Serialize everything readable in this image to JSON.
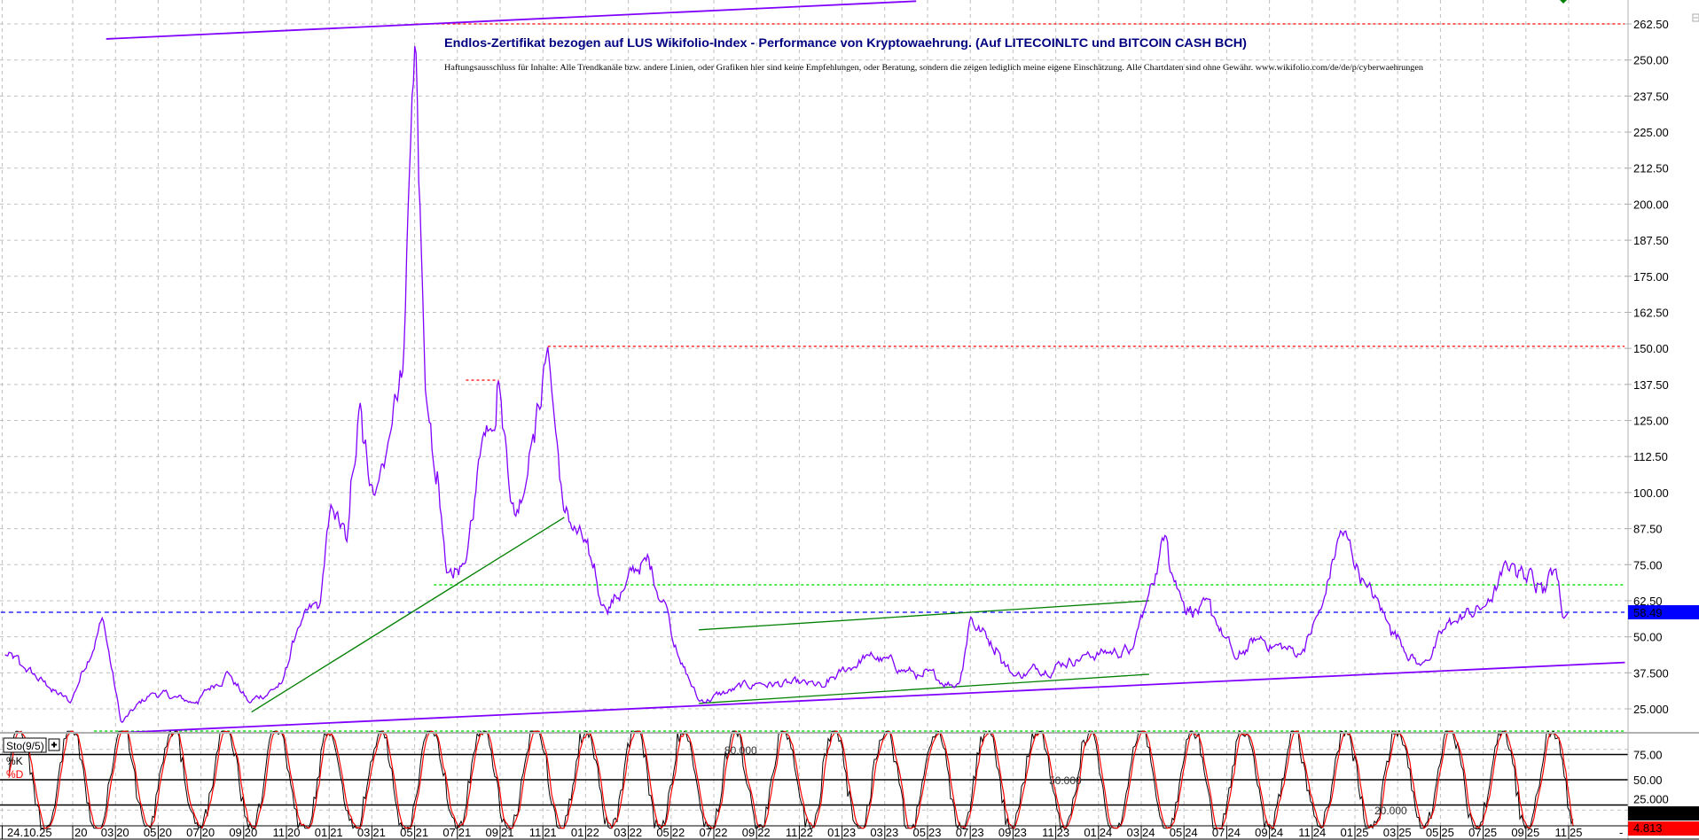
{
  "chart_data": [
    {
      "type": "line",
      "title": "Endlos-Zertifikat bezogen auf LUS Wikifolio-Index - Performance von Kryptowaehrung. (Auf LITECOINLTC und BITCOIN CASH BCH)",
      "subtitle": "Haftungsausschluss für Inhalte: Alle Trendkanäle bzw. andere Linien, oder Grafiken hier sind keine Empfehlungen, oder Beratung, sondern die zeigen lediglich meine eigene Einschätzung. Alle Chartdaten sind ohne Gewähr.  www.wikifolio.com/de/de/p/cyberwaehrungen",
      "xlabel": "",
      "ylabel": "",
      "ylim": [
        17,
        268
      ],
      "grid": true,
      "y_ticks": [
        "262.50",
        "250.00",
        "237.50",
        "225.00",
        "212.50",
        "200.00",
        "187.50",
        "175.00",
        "162.50",
        "150.00",
        "137.50",
        "125.00",
        "112.50",
        "100.00",
        "87.50",
        "75.00",
        "62.50",
        "50.00",
        "37.500",
        "25.000"
      ],
      "y_tick_values": [
        262.5,
        250,
        237.5,
        225,
        212.5,
        200,
        187.5,
        175,
        162.5,
        150,
        137.5,
        125,
        112.5,
        100,
        87.5,
        75,
        62.5,
        50,
        37.5,
        25
      ],
      "last_price": {
        "label": "58.49",
        "value": 58.49,
        "color": "#0000ff"
      },
      "series": [
        {
          "color": "#8000ff",
          "points": [
            [
              "2019-09-26",
              43.8
            ],
            [
              "2019-10-19",
              40
            ],
            [
              "2019-11-27",
              32.5
            ],
            [
              "2019-12-28",
              27
            ],
            [
              "2020-02-13",
              57
            ],
            [
              "2020-03-09",
              20
            ],
            [
              "2020-04-22",
              30.6
            ],
            [
              "2020-06-23",
              27
            ],
            [
              "2020-08-08",
              38
            ],
            [
              "2020-09-09",
              27
            ],
            [
              "2020-10-25",
              34
            ],
            [
              "2020-11-17",
              53
            ],
            [
              "2020-12-18",
              60.6
            ],
            [
              "2021-01-03",
              96
            ],
            [
              "2021-01-26",
              83
            ],
            [
              "2021-02-14",
              132
            ],
            [
              "2021-03-04",
              98
            ],
            [
              "2021-03-27",
              120.7
            ],
            [
              "2021-04-15",
              143
            ],
            [
              "2021-05-02",
              261
            ],
            [
              "2021-05-16",
              135.7
            ],
            [
              "2021-05-28",
              109
            ],
            [
              "2021-06-16",
              72
            ],
            [
              "2021-07-13",
              75.6
            ],
            [
              "2021-08-06",
              118.8
            ],
            [
              "2021-08-29",
              139
            ],
            [
              "2021-09-22",
              90.7
            ],
            [
              "2021-10-15",
              117
            ],
            [
              "2021-11-08",
              150.7
            ],
            [
              "2021-11-30",
              94
            ],
            [
              "2022-01-08",
              77.5
            ],
            [
              "2022-01-23",
              60.6
            ],
            [
              "2022-02-24",
              66
            ],
            [
              "2022-03-24",
              77.5
            ],
            [
              "2022-04-25",
              60.6
            ],
            [
              "2022-05-10",
              43.8
            ],
            [
              "2022-06-10",
              27.6
            ],
            [
              "2022-09-04",
              34
            ],
            [
              "2022-12-06",
              32.5
            ],
            [
              "2023-02-06",
              43.8
            ],
            [
              "2023-04-22",
              36.3
            ],
            [
              "2023-06-16",
              33.6
            ],
            [
              "2023-07-01",
              57
            ],
            [
              "2023-08-09",
              45.6
            ],
            [
              "2023-09-02",
              36.3
            ],
            [
              "2023-12-11",
              43.8
            ],
            [
              "2024-02-19",
              45.6
            ],
            [
              "2024-03-09",
              62.5
            ],
            [
              "2024-04-05",
              85.8
            ],
            [
              "2024-04-28",
              62.5
            ],
            [
              "2024-06-13",
              57
            ],
            [
              "2024-07-14",
              41.9
            ],
            [
              "2024-08-14",
              49.4
            ],
            [
              "2024-10-15",
              43.8
            ],
            [
              "2024-11-15",
              60.6
            ],
            [
              "2024-12-11",
              87
            ],
            [
              "2025-01-16",
              68
            ],
            [
              "2025-02-17",
              55
            ],
            [
              "2025-04-03",
              40
            ],
            [
              "2025-05-18",
              55
            ],
            [
              "2025-07-04",
              60.6
            ],
            [
              "2025-08-12",
              75.6
            ],
            [
              "2025-09-20",
              68
            ],
            [
              "2025-10-13",
              73.8
            ],
            [
              "2025-10-23",
              56
            ],
            [
              "2025-11-01",
              58.49
            ]
          ]
        }
      ],
      "trendlines": [
        {
          "color": "#8000ff",
          "style": "solid",
          "from": [
            "2020-02-18",
            257.3
          ],
          "to": [
            "2023-04-15",
            270.4
          ]
        },
        {
          "color": "#8000ff",
          "style": "solid",
          "from": [
            "2020-03-05",
            16.7
          ],
          "to": [
            "2026-01-20",
            41.1
          ]
        },
        {
          "color": "#008000",
          "style": "solid",
          "from": [
            "2020-09-12",
            23.9
          ],
          "to": [
            "2021-12-01",
            91.4
          ]
        },
        {
          "color": "#008000",
          "style": "solid",
          "from": [
            "2022-06-10",
            52.4
          ],
          "to": [
            "2024-03-12",
            62.5
          ]
        },
        {
          "color": "#008000",
          "style": "solid",
          "from": [
            "2022-06-10",
            26.9
          ],
          "to": [
            "2024-03-12",
            37
          ]
        }
      ],
      "horizontal_lines": [
        {
          "value": 262.5,
          "color": "#ff0000",
          "style": "dotted",
          "from": "2021-05-02"
        },
        {
          "value": 139,
          "color": "#ff0000",
          "style": "dotted",
          "from": "2021-07-13",
          "to": "2021-08-29"
        },
        {
          "value": 150.7,
          "color": "#ff0000",
          "style": "dotted",
          "from": "2021-11-08"
        },
        {
          "value": 68,
          "color": "#00e000",
          "style": "dotted",
          "from": "2021-05-28"
        },
        {
          "value": 17.3,
          "color": "#00e000",
          "style": "dotted",
          "from": "2020-02-01"
        },
        {
          "value": 58.49,
          "color": "#0000ff",
          "style": "dashed",
          "from": "2019-09-20"
        }
      ]
    },
    {
      "type": "line",
      "title": "Sto(9/5)",
      "ylim": [
        0,
        100
      ],
      "y_ticks": [
        "75.00",
        "50.00",
        "25.000"
      ],
      "y_tick_values": [
        75,
        50,
        25
      ],
      "levels": [
        {
          "value": 80,
          "label": "80.000"
        },
        {
          "value": 50,
          "label": "50.000"
        },
        {
          "value": 20,
          "label": "20.000"
        }
      ],
      "series": [
        {
          "name": "%K",
          "color": "#000000",
          "last": "10.836"
        },
        {
          "name": "%D",
          "color": "#ff0000",
          "last": "4.813"
        }
      ]
    }
  ],
  "x_axis": {
    "labels": [
      {
        "text": "24.10.25",
        "date": "2019-09-22"
      },
      {
        "text": "20",
        "date": "2020-01-01"
      },
      {
        "text": "03 20",
        "date": "2020-03-01"
      },
      {
        "text": "05 20",
        "date": "2020-05-01"
      },
      {
        "text": "07 20",
        "date": "2020-07-01"
      },
      {
        "text": "09 20",
        "date": "2020-09-01"
      },
      {
        "text": "11 20",
        "date": "2020-11-01"
      },
      {
        "text": "01 21",
        "date": "2021-01-01"
      },
      {
        "text": "03 21",
        "date": "2021-03-01"
      },
      {
        "text": "05 21",
        "date": "2021-05-01"
      },
      {
        "text": "07 21",
        "date": "2021-07-01"
      },
      {
        "text": "09 21",
        "date": "2021-09-01"
      },
      {
        "text": "11 21",
        "date": "2021-11-01"
      },
      {
        "text": "01 22",
        "date": "2022-01-01"
      },
      {
        "text": "03 22",
        "date": "2022-03-01"
      },
      {
        "text": "05 22",
        "date": "2022-05-01"
      },
      {
        "text": "07 22",
        "date": "2022-07-01"
      },
      {
        "text": "09 22",
        "date": "2022-09-01"
      },
      {
        "text": "11 22",
        "date": "2022-11-01"
      },
      {
        "text": "01 23",
        "date": "2023-01-01"
      },
      {
        "text": "03 23",
        "date": "2023-03-01"
      },
      {
        "text": "05 23",
        "date": "2023-05-01"
      },
      {
        "text": "07 23",
        "date": "2023-07-01"
      },
      {
        "text": "09 23",
        "date": "2023-09-01"
      },
      {
        "text": "11 23",
        "date": "2023-11-01"
      },
      {
        "text": "01 24",
        "date": "2024-01-01"
      },
      {
        "text": "03 24",
        "date": "2024-03-01"
      },
      {
        "text": "05 24",
        "date": "2024-05-01"
      },
      {
        "text": "07 24",
        "date": "2024-07-01"
      },
      {
        "text": "09 24",
        "date": "2024-09-01"
      },
      {
        "text": "11 24",
        "date": "2024-11-01"
      },
      {
        "text": "01 25",
        "date": "2025-01-01"
      },
      {
        "text": "03 25",
        "date": "2025-03-01"
      },
      {
        "text": "05 25",
        "date": "2025-05-01"
      },
      {
        "text": "07 25",
        "date": "2025-07-01"
      },
      {
        "text": "09 25",
        "date": "2025-09-01"
      },
      {
        "text": "11 25",
        "date": "2025-11-01"
      }
    ],
    "end_marker": "-"
  },
  "colors": {
    "title": "#000080",
    "grid": "#c0c0c0",
    "axis": "#b0b0b0"
  },
  "ui": {
    "expand_icon": "plus-box-icon",
    "collapse_icon": "minus-box-icon"
  }
}
